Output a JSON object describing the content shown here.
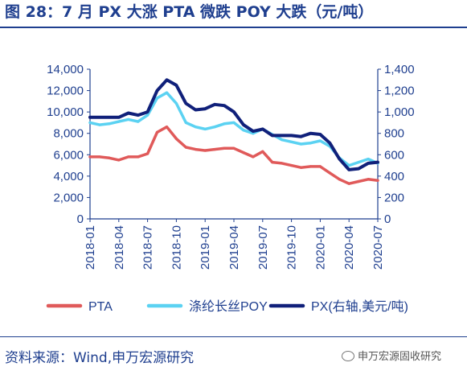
{
  "title": "图 28：7 月 PX 大涨 PTA 微跌 POY 大跌（元/吨）",
  "source": "资料来源：Wind,申万宏源研究",
  "watermark": "申万宏源固收研究",
  "watermark_icon": "wechat-icon",
  "chart_data": {
    "type": "line",
    "x": [
      "2018-01",
      "2018-02",
      "2018-03",
      "2018-04",
      "2018-05",
      "2018-06",
      "2018-07",
      "2018-08",
      "2018-09",
      "2018-10",
      "2018-11",
      "2018-12",
      "2019-01",
      "2019-02",
      "2019-03",
      "2019-04",
      "2019-05",
      "2019-06",
      "2019-07",
      "2019-08",
      "2019-09",
      "2019-10",
      "2019-11",
      "2019-12",
      "2020-01",
      "2020-02",
      "2020-03",
      "2020-04",
      "2020-05",
      "2020-06",
      "2020-07"
    ],
    "x_tick_labels": [
      "2018-01",
      "2018-04",
      "2018-07",
      "2018-10",
      "2019-01",
      "2019-04",
      "2019-07",
      "2019-10",
      "2020-01",
      "2020-04",
      "2020-07"
    ],
    "y_left": {
      "min": 0,
      "max": 14000,
      "ticks": [
        0,
        2000,
        4000,
        6000,
        8000,
        10000,
        12000,
        14000
      ],
      "tick_labels": [
        "0",
        "2,000",
        "4,000",
        "6,000",
        "8,000",
        "10,000",
        "12,000",
        "14,000"
      ]
    },
    "y_right": {
      "min": 0,
      "max": 1400,
      "ticks": [
        0,
        200,
        400,
        600,
        800,
        1000,
        1200,
        1400
      ],
      "tick_labels": [
        "0",
        "200",
        "400",
        "600",
        "800",
        "1,000",
        "1,200",
        "1,400"
      ]
    },
    "series": [
      {
        "name": "PTA",
        "axis": "left",
        "color": "#e05a5a",
        "values": [
          5800,
          5800,
          5700,
          5500,
          5800,
          5800,
          6100,
          8100,
          8600,
          7500,
          6700,
          6500,
          6400,
          6500,
          6600,
          6600,
          6200,
          5800,
          6300,
          5300,
          5200,
          5000,
          4800,
          4900,
          4900,
          4300,
          3700,
          3300,
          3500,
          3700,
          3600
        ]
      },
      {
        "name": "涤纶长丝POY",
        "axis": "left",
        "color": "#5bd2f2",
        "values": [
          9000,
          8800,
          8900,
          9100,
          9300,
          9100,
          9700,
          11300,
          11800,
          10800,
          9000,
          8600,
          8400,
          8600,
          8900,
          9000,
          8300,
          8000,
          8400,
          7900,
          7400,
          7200,
          7000,
          7100,
          7300,
          6800,
          5700,
          5000,
          5300,
          5600,
          5200
        ]
      },
      {
        "name": "PX(右轴,美元/吨)",
        "axis": "right",
        "color": "#10207a",
        "values": [
          950,
          950,
          950,
          950,
          990,
          970,
          1000,
          1200,
          1300,
          1250,
          1080,
          1020,
          1030,
          1070,
          1060,
          1000,
          880,
          820,
          840,
          780,
          780,
          780,
          770,
          800,
          790,
          710,
          560,
          460,
          470,
          520,
          530
        ]
      }
    ],
    "legend_position": "bottom"
  }
}
